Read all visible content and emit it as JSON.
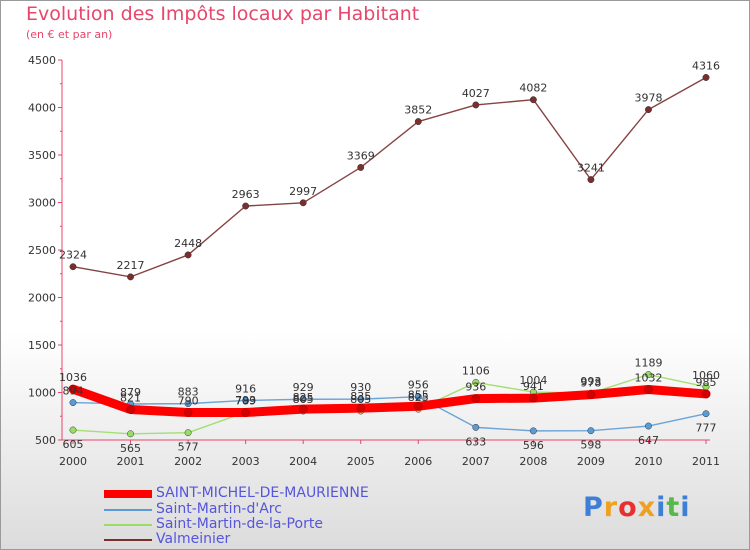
{
  "title": "Evolution des Impôts locaux par Habitant",
  "subtitle": "(en € et par an)",
  "logo": [
    "P",
    "r",
    "o",
    "x",
    "i",
    "t",
    "i"
  ],
  "chart_data": {
    "type": "line",
    "title": "Evolution des Impôts locaux par Habitant",
    "subtitle": "(en € et par an)",
    "xlabel": "",
    "ylabel": "",
    "x": [
      "2000",
      "2001",
      "2002",
      "2003",
      "2004",
      "2005",
      "2006",
      "2007",
      "2008",
      "2009",
      "2010",
      "2011"
    ],
    "ylim": [
      500,
      4500
    ],
    "yticks": [
      500,
      1000,
      1500,
      2000,
      2500,
      3000,
      3500,
      4000,
      4500
    ],
    "grid": false,
    "legend_position": "bottom-left",
    "series": [
      {
        "name": "SAINT-MICHEL-DE-MAURIENNE",
        "color": "#ff0000",
        "values": [
          1036,
          821,
          790,
          789,
          825,
          835,
          855,
          936,
          941,
          978,
          1032,
          985
        ]
      },
      {
        "name": "Saint-Martin-d'Arc",
        "color": "#5b9bd5",
        "values": [
          894,
          879,
          883,
          916,
          929,
          930,
          956,
          633,
          596,
          598,
          647,
          777
        ]
      },
      {
        "name": "Saint-Martin-de-la-Porte",
        "color": "#99dd66",
        "values": [
          605,
          565,
          577,
          793,
          805,
          805,
          825,
          1106,
          1004,
          993,
          1189,
          1060
        ]
      },
      {
        "name": "Valmeinier",
        "color": "#7a2e2e",
        "values": [
          2324,
          2217,
          2448,
          2963,
          2997,
          3369,
          3852,
          4027,
          4082,
          3241,
          3978,
          4316
        ]
      }
    ]
  }
}
